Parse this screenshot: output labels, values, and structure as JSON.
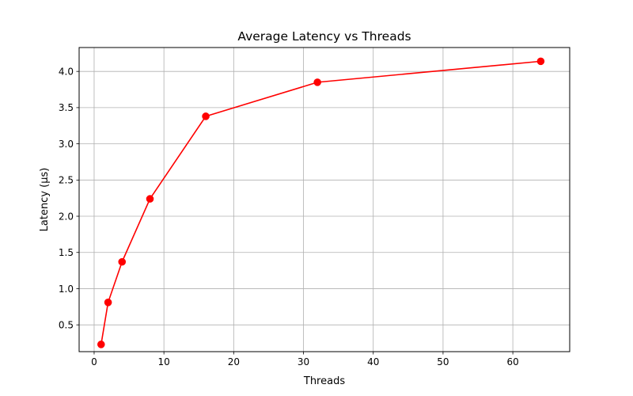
{
  "chart_data": {
    "type": "line",
    "title": "Average Latency vs Threads",
    "xlabel": "Threads",
    "ylabel": "Latency (µs)",
    "xlim": [
      -2.15,
      68.15
    ],
    "ylim": [
      0.13,
      4.33
    ],
    "xticks": [
      0,
      10,
      20,
      30,
      40,
      50,
      60
    ],
    "yticks": [
      0.5,
      1.0,
      1.5,
      2.0,
      2.5,
      3.0,
      3.5,
      4.0
    ],
    "xtick_labels": [
      "0",
      "10",
      "20",
      "30",
      "40",
      "50",
      "60"
    ],
    "ytick_labels": [
      "0.5",
      "1.0",
      "1.5",
      "2.0",
      "2.5",
      "3.0",
      "3.5",
      "4.0"
    ],
    "grid": true,
    "legend": null,
    "series": [
      {
        "color": "#ff0000",
        "marker": "circle",
        "x": [
          1,
          2,
          4,
          8,
          16,
          32,
          64
        ],
        "y": [
          0.23,
          0.81,
          1.37,
          2.24,
          3.38,
          3.85,
          4.14
        ]
      }
    ]
  }
}
